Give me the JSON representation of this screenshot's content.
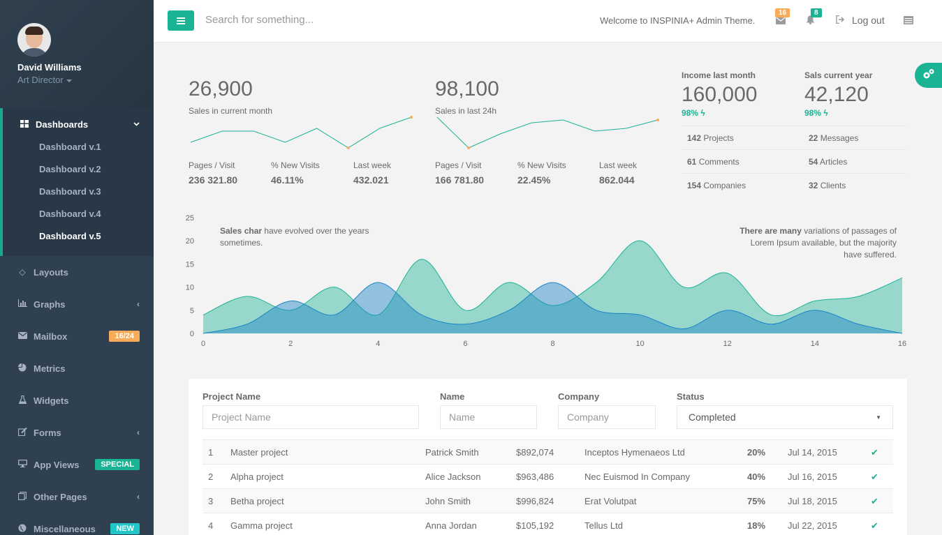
{
  "profile": {
    "name": "David Williams",
    "role": "Art Director"
  },
  "nav": {
    "dashboards": {
      "label": "Dashboards",
      "items": [
        "Dashboard v.1",
        "Dashboard v.2",
        "Dashboard v.3",
        "Dashboard v.4",
        "Dashboard v.5"
      ]
    },
    "items": [
      {
        "label": "Layouts"
      },
      {
        "label": "Graphs"
      },
      {
        "label": "Mailbox",
        "badge": "16/24"
      },
      {
        "label": "Metrics"
      },
      {
        "label": "Widgets"
      },
      {
        "label": "Forms"
      },
      {
        "label": "App Views",
        "badge": "SPECIAL"
      },
      {
        "label": "Other Pages"
      },
      {
        "label": "Miscellaneous",
        "badge": "NEW"
      }
    ]
  },
  "topbar": {
    "search_placeholder": "Search for something...",
    "welcome": "Welcome to INSPINIA+ Admin Theme.",
    "mail_count": "16",
    "alert_count": "8",
    "logout": "Log out"
  },
  "stats": {
    "block1": {
      "value": "26,900",
      "label": "Sales in current month",
      "sub": [
        {
          "label": "Pages / Visit",
          "value": "236 321.80"
        },
        {
          "label": "% New Visits",
          "value": "46.11%"
        },
        {
          "label": "Last week",
          "value": "432.021"
        }
      ],
      "spark": [
        4,
        8,
        8,
        4,
        9,
        2,
        9,
        13
      ]
    },
    "block2": {
      "value": "98,100",
      "label": "Sales in last 24h",
      "sub": [
        {
          "label": "Pages / Visit",
          "value": "166 781.80"
        },
        {
          "label": "% New Visits",
          "value": "22.45%"
        },
        {
          "label": "Last week",
          "value": "862.044"
        }
      ],
      "spark": [
        13,
        2,
        7,
        11,
        12,
        8,
        9,
        12
      ]
    },
    "income": {
      "label": "Income last month",
      "value": "160,000",
      "pct": "98%"
    },
    "sales_year": {
      "label": "Sals current year",
      "value": "42,120",
      "pct": "98%"
    },
    "counts": [
      {
        "num": "142",
        "label": "Projects"
      },
      {
        "num": "22",
        "label": "Messages"
      },
      {
        "num": "61",
        "label": "Comments"
      },
      {
        "num": "54",
        "label": "Articles"
      },
      {
        "num": "154",
        "label": "Companies"
      },
      {
        "num": "32",
        "label": "Clients"
      }
    ]
  },
  "chart_data": {
    "type": "area",
    "x": [
      0,
      1,
      2,
      3,
      4,
      5,
      6,
      7,
      8,
      9,
      10,
      11,
      12,
      13,
      14,
      15,
      16
    ],
    "series": [
      {
        "values": [
          4,
          8,
          5,
          10,
          4,
          16,
          5,
          11,
          6,
          11,
          20,
          10,
          13,
          4,
          7,
          8,
          12
        ],
        "color": "#1ab394"
      },
      {
        "values": [
          0,
          2,
          7,
          4,
          11,
          4,
          2,
          5,
          11,
          5,
          4,
          1,
          5,
          2,
          5,
          2,
          0
        ],
        "color": "#1c84c6"
      }
    ],
    "xlim": [
      0,
      16
    ],
    "ylim": [
      0,
      25
    ],
    "xticks": [
      0,
      2,
      4,
      6,
      8,
      10,
      12,
      14,
      16
    ],
    "yticks": [
      0,
      5,
      10,
      15,
      20,
      25
    ],
    "note_left_bold": "Sales char",
    "note_left": "have evolved over the years sometimes.",
    "note_right_bold": "There are many",
    "note_right": "variations of passages of Lorem Ipsum available, but the majority have suffered."
  },
  "table": {
    "filters": {
      "project_label": "Project Name",
      "project_placeholder": "Project Name",
      "name_label": "Name",
      "name_placeholder": "Name",
      "company_label": "Company",
      "company_placeholder": "Company",
      "status_label": "Status",
      "status_value": "Completed"
    },
    "rows": [
      [
        "1",
        "Master project",
        "Patrick Smith",
        "$892,074",
        "Inceptos Hymenaeos Ltd",
        "20%",
        "Jul 14, 2015"
      ],
      [
        "2",
        "Alpha project",
        "Alice Jackson",
        "$963,486",
        "Nec Euismod In Company",
        "40%",
        "Jul 16, 2015"
      ],
      [
        "3",
        "Betha project",
        "John Smith",
        "$996,824",
        "Erat Volutpat",
        "75%",
        "Jul 18, 2015"
      ],
      [
        "4",
        "Gamma project",
        "Anna Jordan",
        "$105,192",
        "Tellus Ltd",
        "18%",
        "Jul 22, 2015"
      ]
    ]
  }
}
